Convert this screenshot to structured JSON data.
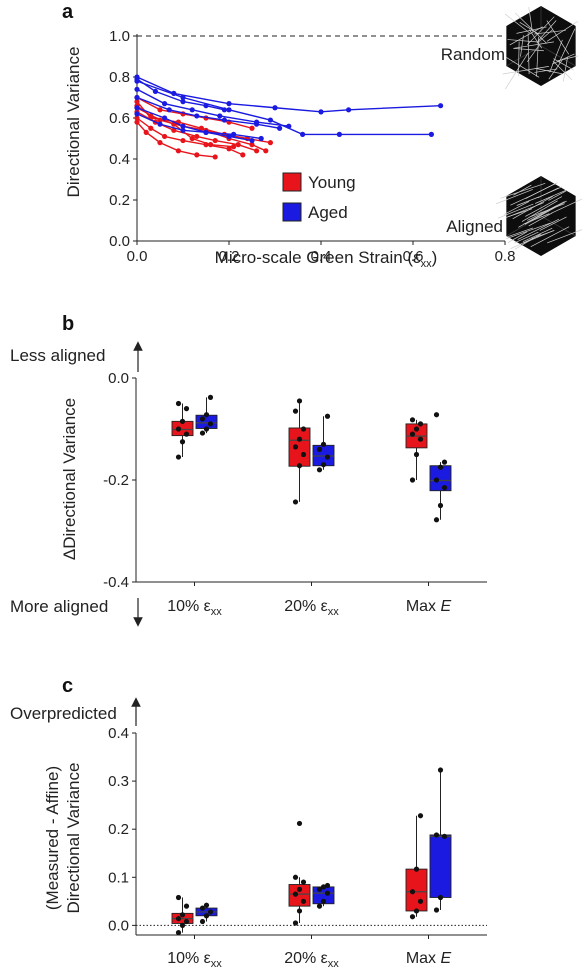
{
  "colors": {
    "young": "#e8141b",
    "aged": "#1a1ae0",
    "axis": "#222222"
  },
  "chart_data": [
    {
      "id": "a",
      "type": "line",
      "panel_label": "a",
      "xlabel": "Micro-scale Green Strain (ε",
      "xlabel_sub": "xx",
      "xlabel_close": ")",
      "ylabel": "Directional Variance",
      "xlim": [
        0,
        0.8
      ],
      "ylim": [
        0,
        1.0
      ],
      "xticks": [
        "0.0",
        "0.2",
        "0.4",
        "0.6",
        "0.8"
      ],
      "yticks": [
        "0.0",
        "0.2",
        "0.4",
        "0.6",
        "0.8",
        "1.0"
      ],
      "reference_line": 1.0,
      "legend": [
        {
          "name": "Young",
          "color": "#e8141b"
        },
        {
          "name": "Aged",
          "color": "#1a1ae0"
        }
      ],
      "annotations": [
        "Random",
        "Aligned"
      ],
      "series": [
        {
          "group": "young",
          "points": [
            [
              0.0,
              0.68
            ],
            [
              0.03,
              0.6
            ],
            [
              0.09,
              0.58
            ],
            [
              0.14,
              0.55
            ],
            [
              0.19,
              0.52
            ],
            [
              0.24,
              0.5
            ],
            [
              0.29,
              0.48
            ]
          ]
        },
        {
          "group": "young",
          "points": [
            [
              0.0,
              0.65
            ],
            [
              0.05,
              0.59
            ],
            [
              0.1,
              0.56
            ],
            [
              0.15,
              0.54
            ],
            [
              0.2,
              0.5
            ],
            [
              0.25,
              0.47
            ],
            [
              0.28,
              0.44
            ]
          ]
        },
        {
          "group": "young",
          "points": [
            [
              0.0,
              0.63
            ],
            [
              0.04,
              0.58
            ],
            [
              0.08,
              0.54
            ],
            [
              0.13,
              0.51
            ],
            [
              0.17,
              0.49
            ],
            [
              0.22,
              0.47
            ],
            [
              0.26,
              0.44
            ]
          ]
        },
        {
          "group": "young",
          "points": [
            [
              0.0,
              0.6
            ],
            [
              0.03,
              0.55
            ],
            [
              0.06,
              0.51
            ],
            [
              0.1,
              0.49
            ],
            [
              0.15,
              0.47
            ],
            [
              0.2,
              0.45
            ],
            [
              0.23,
              0.42
            ]
          ]
        },
        {
          "group": "young",
          "points": [
            [
              0.0,
              0.58
            ],
            [
              0.02,
              0.53
            ],
            [
              0.05,
              0.48
            ],
            [
              0.09,
              0.44
            ],
            [
              0.13,
              0.42
            ],
            [
              0.17,
              0.41
            ]
          ]
        },
        {
          "group": "young",
          "points": [
            [
              0.0,
              0.7
            ],
            [
              0.05,
              0.64
            ],
            [
              0.1,
              0.62
            ],
            [
              0.15,
              0.6
            ],
            [
              0.2,
              0.58
            ],
            [
              0.25,
              0.55
            ]
          ]
        },
        {
          "group": "young",
          "points": [
            [
              0.0,
              0.66
            ],
            [
              0.03,
              0.61
            ],
            [
              0.08,
              0.57
            ],
            [
              0.12,
              0.5
            ],
            [
              0.16,
              0.47
            ],
            [
              0.21,
              0.46
            ]
          ]
        },
        {
          "group": "aged",
          "points": [
            [
              0.0,
              0.8
            ],
            [
              0.08,
              0.72
            ],
            [
              0.2,
              0.67
            ],
            [
              0.3,
              0.65
            ],
            [
              0.4,
              0.63
            ],
            [
              0.46,
              0.64
            ],
            [
              0.66,
              0.66
            ]
          ]
        },
        {
          "group": "aged",
          "points": [
            [
              0.0,
              0.78
            ],
            [
              0.1,
              0.7
            ],
            [
              0.2,
              0.64
            ],
            [
              0.29,
              0.59
            ],
            [
              0.36,
              0.52
            ],
            [
              0.44,
              0.52
            ],
            [
              0.64,
              0.52
            ]
          ]
        },
        {
          "group": "aged",
          "points": [
            [
              0.0,
              0.74
            ],
            [
              0.06,
              0.67
            ],
            [
              0.12,
              0.64
            ],
            [
              0.18,
              0.61
            ],
            [
              0.26,
              0.58
            ],
            [
              0.33,
              0.56
            ]
          ]
        },
        {
          "group": "aged",
          "points": [
            [
              0.0,
              0.7
            ],
            [
              0.07,
              0.64
            ],
            [
              0.13,
              0.61
            ],
            [
              0.19,
              0.59
            ],
            [
              0.26,
              0.57
            ],
            [
              0.31,
              0.55
            ]
          ]
        },
        {
          "group": "aged",
          "points": [
            [
              0.0,
              0.65
            ],
            [
              0.06,
              0.6
            ],
            [
              0.1,
              0.56
            ],
            [
              0.15,
              0.53
            ],
            [
              0.21,
              0.52
            ],
            [
              0.27,
              0.5
            ]
          ]
        },
        {
          "group": "aged",
          "points": [
            [
              0.0,
              0.62
            ],
            [
              0.05,
              0.57
            ],
            [
              0.1,
              0.54
            ],
            [
              0.15,
              0.53
            ],
            [
              0.2,
              0.51
            ],
            [
              0.25,
              0.49
            ]
          ]
        },
        {
          "group": "aged",
          "points": [
            [
              0.0,
              0.79
            ],
            [
              0.04,
              0.73
            ],
            [
              0.1,
              0.68
            ],
            [
              0.15,
              0.66
            ],
            [
              0.19,
              0.64
            ]
          ]
        }
      ]
    },
    {
      "id": "b",
      "type": "box",
      "panel_label": "b",
      "ylabel": "ΔDirectional Variance",
      "ylim": [
        -0.4,
        0.0
      ],
      "yticks": [
        "0.0",
        "-0.2",
        "-0.4"
      ],
      "top_note": "Less aligned",
      "bottom_note": "More aligned",
      "categories": [
        {
          "main": "10% ε",
          "sub": "xx",
          "italic": ""
        },
        {
          "main": "20% ε",
          "sub": "xx",
          "italic": ""
        },
        {
          "main": "Max ",
          "sub": "",
          "italic": "E"
        }
      ],
      "series": [
        {
          "group": "young",
          "boxes": [
            {
              "min": -0.155,
              "q1": -0.113,
              "median": -0.101,
              "q3": -0.085,
              "max": -0.05,
              "points": [
                -0.155,
                -0.125,
                -0.11,
                -0.1,
                -0.085,
                -0.06,
                -0.05
              ]
            },
            {
              "min": -0.243,
              "q1": -0.173,
              "median": -0.122,
              "q3": -0.098,
              "max": -0.045,
              "points": [
                -0.243,
                -0.172,
                -0.15,
                -0.135,
                -0.12,
                -0.1,
                -0.065,
                -0.045
              ]
            },
            {
              "min": -0.2,
              "q1": -0.137,
              "median": -0.114,
              "q3": -0.09,
              "max": -0.082,
              "points": [
                -0.2,
                -0.15,
                -0.12,
                -0.11,
                -0.1,
                -0.09,
                -0.082
              ]
            }
          ]
        },
        {
          "group": "aged",
          "boxes": [
            {
              "min": -0.108,
              "q1": -0.099,
              "median": -0.088,
              "q3": -0.073,
              "max": -0.038,
              "points": [
                -0.108,
                -0.1,
                -0.09,
                -0.08,
                -0.072,
                -0.038
              ]
            },
            {
              "min": -0.18,
              "q1": -0.172,
              "median": -0.153,
              "q3": -0.132,
              "max": -0.075,
              "points": [
                -0.18,
                -0.17,
                -0.155,
                -0.14,
                -0.13,
                -0.075
              ]
            },
            {
              "min": -0.278,
              "q1": -0.221,
              "median": -0.201,
              "q3": -0.172,
              "max": -0.165,
              "points": [
                -0.278,
                -0.25,
                -0.215,
                -0.2,
                -0.175,
                -0.165,
                -0.072
              ]
            }
          ]
        }
      ]
    },
    {
      "id": "c",
      "type": "box",
      "panel_label": "c",
      "ylabel_line1": "(Measured - Affine)",
      "ylabel_line2": "Directional Variance",
      "ylim": [
        -0.02,
        0.4
      ],
      "yticks": [
        "0.0",
        "0.1",
        "0.2",
        "0.3",
        "0.4"
      ],
      "reference_line": 0.0,
      "top_note": "Overpredicted",
      "categories": [
        {
          "main": "10% ε",
          "sub": "xx",
          "italic": ""
        },
        {
          "main": "20% ε",
          "sub": "xx",
          "italic": ""
        },
        {
          "main": "Max ",
          "sub": "",
          "italic": "E"
        }
      ],
      "series": [
        {
          "group": "young",
          "boxes": [
            {
              "min": -0.015,
              "q1": 0.004,
              "median": 0.014,
              "q3": 0.025,
              "max": 0.058,
              "points": [
                -0.015,
                0.0,
                0.008,
                0.014,
                0.022,
                0.04,
                0.058
              ]
            },
            {
              "min": 0.005,
              "q1": 0.04,
              "median": 0.065,
              "q3": 0.085,
              "max": 0.1,
              "points": [
                0.005,
                0.03,
                0.05,
                0.065,
                0.075,
                0.09,
                0.1,
                0.212
              ]
            },
            {
              "min": 0.018,
              "q1": 0.03,
              "median": 0.07,
              "q3": 0.117,
              "max": 0.228,
              "points": [
                0.018,
                0.03,
                0.05,
                0.07,
                0.117,
                0.228
              ]
            }
          ]
        },
        {
          "group": "aged",
          "boxes": [
            {
              "min": 0.008,
              "q1": 0.02,
              "median": 0.028,
              "q3": 0.036,
              "max": 0.042,
              "points": [
                0.008,
                0.02,
                0.028,
                0.036,
                0.042
              ]
            },
            {
              "min": 0.04,
              "q1": 0.045,
              "median": 0.067,
              "q3": 0.08,
              "max": 0.083,
              "points": [
                0.04,
                0.05,
                0.067,
                0.075,
                0.08,
                0.083
              ]
            },
            {
              "min": 0.032,
              "q1": 0.058,
              "median": 0.185,
              "q3": 0.188,
              "max": 0.323,
              "points": [
                0.032,
                0.058,
                0.185,
                0.188,
                0.323
              ]
            }
          ]
        }
      ]
    }
  ]
}
